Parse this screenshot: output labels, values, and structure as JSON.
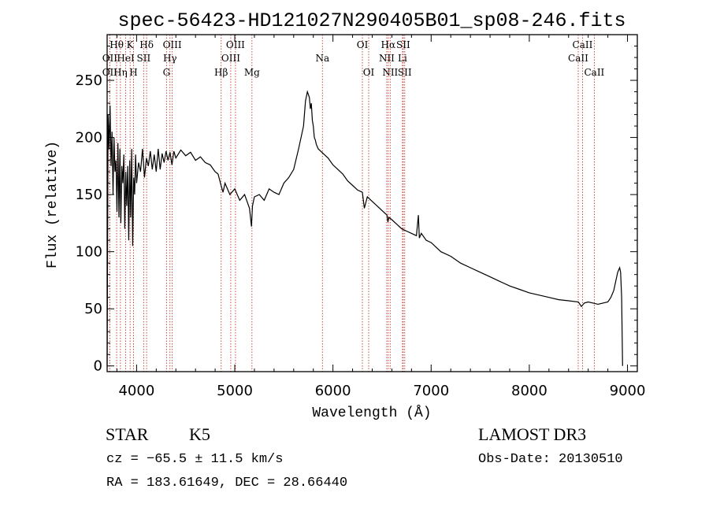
{
  "chart_data": {
    "type": "line",
    "title": "spec-56423-HD121027N290405B01_sp08-246.fits",
    "xlabel": "Wavelength (Å)",
    "ylabel": "Flux (relative)",
    "xlim": [
      3700,
      9100
    ],
    "ylim": [
      -5,
      290
    ],
    "xticks": [
      4000,
      5000,
      6000,
      7000,
      8000,
      9000
    ],
    "yticks": [
      0,
      50,
      100,
      150,
      200,
      250
    ],
    "series": [
      {
        "name": "flux",
        "x": [
          3700,
          3710,
          3720,
          3730,
          3740,
          3750,
          3760,
          3770,
          3780,
          3790,
          3800,
          3810,
          3820,
          3830,
          3840,
          3850,
          3860,
          3870,
          3880,
          3890,
          3900,
          3910,
          3920,
          3930,
          3940,
          3950,
          3960,
          3970,
          3980,
          3990,
          4000,
          4020,
          4040,
          4060,
          4080,
          4100,
          4120,
          4140,
          4160,
          4180,
          4200,
          4220,
          4240,
          4260,
          4280,
          4300,
          4320,
          4340,
          4360,
          4380,
          4400,
          4450,
          4500,
          4550,
          4600,
          4650,
          4700,
          4750,
          4800,
          4830,
          4860,
          4880,
          4900,
          4950,
          5000,
          5050,
          5100,
          5150,
          5170,
          5180,
          5200,
          5250,
          5300,
          5350,
          5400,
          5450,
          5500,
          5550,
          5600,
          5650,
          5700,
          5720,
          5740,
          5760,
          5770,
          5780,
          5790,
          5800,
          5810,
          5820,
          5830,
          5850,
          5900,
          5950,
          6000,
          6050,
          6100,
          6150,
          6200,
          6250,
          6300,
          6320,
          6350,
          6400,
          6450,
          6500,
          6550,
          6560,
          6570,
          6600,
          6650,
          6700,
          6750,
          6800,
          6850,
          6870,
          6880,
          6900,
          6950,
          7000,
          7100,
          7200,
          7300,
          7400,
          7500,
          7600,
          7700,
          7800,
          7900,
          8000,
          8100,
          8200,
          8300,
          8400,
          8500,
          8530,
          8560,
          8600,
          8650,
          8700,
          8750,
          8800,
          8830,
          8860,
          8880,
          8900,
          8920,
          8930,
          8940,
          8950
        ],
        "values": [
          0,
          220,
          190,
          228,
          175,
          205,
          150,
          200,
          170,
          180,
          135,
          195,
          130,
          190,
          125,
          175,
          160,
          185,
          120,
          170,
          140,
          175,
          110,
          180,
          130,
          190,
          105,
          165,
          150,
          185,
          160,
          178,
          170,
          190,
          165,
          182,
          175,
          188,
          172,
          185,
          170,
          190,
          172,
          186,
          178,
          188,
          180,
          187,
          176,
          188,
          182,
          189,
          184,
          187,
          180,
          183,
          178,
          176,
          170,
          168,
          158,
          152,
          160,
          150,
          155,
          145,
          150,
          138,
          122,
          140,
          148,
          150,
          145,
          155,
          152,
          150,
          160,
          165,
          172,
          190,
          210,
          232,
          240,
          235,
          225,
          230,
          215,
          210,
          200,
          198,
          194,
          190,
          186,
          182,
          176,
          172,
          168,
          162,
          158,
          154,
          152,
          138,
          148,
          144,
          140,
          136,
          132,
          126,
          130,
          128,
          124,
          120,
          118,
          116,
          114,
          132,
          112,
          116,
          110,
          108,
          100,
          96,
          90,
          86,
          82,
          78,
          74,
          70,
          67,
          64,
          62,
          60,
          58,
          57,
          56,
          52,
          55,
          56,
          55,
          54,
          55,
          56,
          60,
          66,
          74,
          82,
          86,
          82,
          60,
          0
        ]
      }
    ],
    "line_labels": [
      {
        "text": "Hθ",
        "x": 3797,
        "row": 1
      },
      {
        "text": "OII",
        "x": 3727,
        "row": 2
      },
      {
        "text": "OII",
        "x": 3727,
        "row": 3
      },
      {
        "text": "K",
        "x": 3934,
        "row": 1
      },
      {
        "text": "HeI",
        "x": 3889,
        "row": 2
      },
      {
        "text": "Hη",
        "x": 3835,
        "row": 3
      },
      {
        "text": "Hδ",
        "x": 4102,
        "row": 1
      },
      {
        "text": "SII",
        "x": 4072,
        "row": 2
      },
      {
        "text": "H",
        "x": 3969,
        "row": 3
      },
      {
        "text": "OIII",
        "x": 4363,
        "row": 1
      },
      {
        "text": "Hγ",
        "x": 4340,
        "row": 2
      },
      {
        "text": "G",
        "x": 4305,
        "row": 3
      },
      {
        "text": "OIII",
        "x": 5007,
        "row": 1
      },
      {
        "text": "OIII",
        "x": 4959,
        "row": 2
      },
      {
        "text": "Hβ",
        "x": 4861,
        "row": 3
      },
      {
        "text": "Mg",
        "x": 5175,
        "row": 3
      },
      {
        "text": "Na",
        "x": 5893,
        "row": 2
      },
      {
        "text": "OI",
        "x": 6300,
        "row": 1
      },
      {
        "text": "OI",
        "x": 6364,
        "row": 3
      },
      {
        "text": "Hα",
        "x": 6563,
        "row": 1
      },
      {
        "text": "SII",
        "x": 6716,
        "row": 1
      },
      {
        "text": "NII",
        "x": 6548,
        "row": 2
      },
      {
        "text": "Li",
        "x": 6708,
        "row": 2
      },
      {
        "text": "NII",
        "x": 6583,
        "row": 3
      },
      {
        "text": "SII",
        "x": 6731,
        "row": 3
      },
      {
        "text": "CaII",
        "x": 8542,
        "row": 1
      },
      {
        "text": "CaII",
        "x": 8498,
        "row": 2
      },
      {
        "text": "CaII",
        "x": 8662,
        "row": 3
      }
    ]
  },
  "info": {
    "class": "STAR",
    "subclass": "K5",
    "cz": "cz = −65.5 ± 11.5 km/s",
    "coords": "RA = 183.61649, DEC =  28.66440",
    "survey": "LAMOST DR3",
    "obs_date": "Obs-Date: 20130510"
  }
}
